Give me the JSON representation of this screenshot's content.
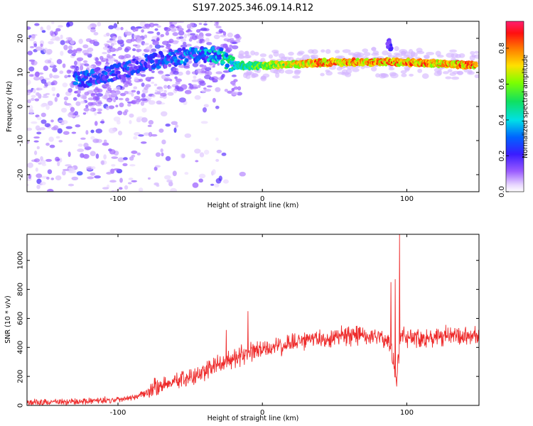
{
  "title": "S197.2025.346.09.14.R12",
  "colors": {
    "snr_line": "#ee2b2b",
    "frame": "#000000"
  },
  "chart_data": [
    {
      "type": "heatmap",
      "xlabel": "Height of straight line (km)",
      "ylabel": "Frequency (Hz)",
      "xlim": [
        -163,
        150
      ],
      "ylim": [
        -25,
        25
      ],
      "xticks": [
        -100,
        0,
        100
      ],
      "yticks": [
        -20,
        -10,
        0,
        10,
        20
      ],
      "colorbar": {
        "label": "Normalized spectral amplitude",
        "range": [
          0,
          0.95
        ],
        "ticks": [
          0.0,
          0.2,
          0.4,
          0.6,
          0.8
        ],
        "colormap": "rainbow (violet to red)"
      },
      "ridge": {
        "points": [
          {
            "x": -125,
            "y": 8
          },
          {
            "x": -100,
            "y": 10
          },
          {
            "x": -80,
            "y": 13
          },
          {
            "x": -50,
            "y": 15
          },
          {
            "x": -30,
            "y": 15
          },
          {
            "x": -20,
            "y": 12
          },
          {
            "x": 0,
            "y": 12
          },
          {
            "x": 50,
            "y": 13
          },
          {
            "x": 100,
            "y": 13
          },
          {
            "x": 148,
            "y": 12
          }
        ],
        "amplitude_by_height": [
          {
            "x": -125,
            "a": 0.3
          },
          {
            "x": -80,
            "a": 0.25
          },
          {
            "x": -20,
            "a": 0.45
          },
          {
            "x": 0,
            "a": 0.65
          },
          {
            "x": 40,
            "a": 0.85
          },
          {
            "x": 100,
            "a": 0.85
          },
          {
            "x": 148,
            "a": 0.85
          }
        ],
        "secondary": {
          "x": 88,
          "y": 18
        }
      }
    },
    {
      "type": "line",
      "xlabel": "Height of straight line (km)",
      "ylabel": "SNR (10 * v/v)",
      "xlim": [
        -163,
        150
      ],
      "ylim": [
        0,
        1180
      ],
      "xticks": [
        -100,
        0,
        100
      ],
      "yticks": [
        0,
        200,
        400,
        600,
        800,
        1000
      ],
      "series": [
        {
          "values": [
            {
              "x": -163,
              "y": 20
            },
            {
              "x": -130,
              "y": 25
            },
            {
              "x": -100,
              "y": 40
            },
            {
              "x": -85,
              "y": 70
            },
            {
              "x": -70,
              "y": 140
            },
            {
              "x": -50,
              "y": 190
            },
            {
              "x": -30,
              "y": 280
            },
            {
              "x": -15,
              "y": 340
            },
            {
              "x": 0,
              "y": 380
            },
            {
              "x": 20,
              "y": 430
            },
            {
              "x": 40,
              "y": 460
            },
            {
              "x": 60,
              "y": 480
            },
            {
              "x": 80,
              "y": 480
            },
            {
              "x": 88,
              "y": 430
            },
            {
              "x": 93,
              "y": 200
            },
            {
              "x": 96,
              "y": 520
            },
            {
              "x": 100,
              "y": 470
            },
            {
              "x": 120,
              "y": 470
            },
            {
              "x": 150,
              "y": 480
            }
          ],
          "spikes": [
            {
              "x": -10,
              "y": 650
            },
            {
              "x": -25,
              "y": 520
            },
            {
              "x": 89,
              "y": 850
            },
            {
              "x": 92,
              "y": 870
            },
            {
              "x": 95,
              "y": 1180
            },
            {
              "x": 93,
              "y": 130
            }
          ],
          "noise_amplitude": 60
        }
      ]
    }
  ]
}
